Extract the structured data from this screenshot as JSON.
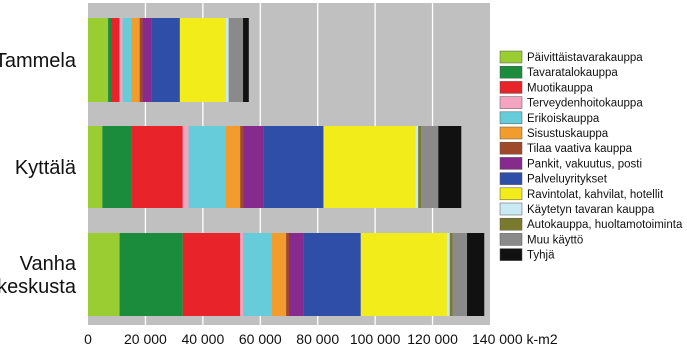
{
  "chart_data": {
    "type": "bar",
    "orientation": "horizontal",
    "stacked": true,
    "categories": [
      "Tammela",
      "Kyttälä",
      "Vanha\nkeskusta"
    ],
    "xlim": [
      0,
      140000
    ],
    "xticks": [
      "0",
      "20 000",
      "40 000",
      "60 000",
      "80 000",
      "100 000",
      "120 000",
      "140 000 k-m2"
    ],
    "grid": true,
    "legend_position": "right",
    "plot_background": "#c0c0c0",
    "series": [
      {
        "name": "Päivittäistavarakauppa",
        "color": "#9acd32",
        "values": [
          7000,
          5000,
          11000
        ]
      },
      {
        "name": "Tavaratalokauppa",
        "color": "#1a8c3c",
        "values": [
          1000,
          10000,
          22000
        ]
      },
      {
        "name": "Muotikauppa",
        "color": "#e8242a",
        "values": [
          3000,
          18000,
          20000
        ]
      },
      {
        "name": "Terveydenhoitokauppa",
        "color": "#f4a3c0",
        "values": [
          1000,
          2000,
          1000
        ]
      },
      {
        "name": "Erikoiskauppa",
        "color": "#66ccd9",
        "values": [
          3000,
          13000,
          10000
        ]
      },
      {
        "name": "Sisustuskauppa",
        "color": "#f39c2e",
        "values": [
          3000,
          5000,
          5000
        ]
      },
      {
        "name": "Tilaa vaativa kauppa",
        "color": "#a0482a",
        "values": [
          1000,
          1000,
          1000
        ]
      },
      {
        "name": "Pankit, vakuutus, posti",
        "color": "#862a8e",
        "values": [
          3000,
          7000,
          5000
        ]
      },
      {
        "name": "Palveluyritykset",
        "color": "#2e4ea8",
        "values": [
          10000,
          21000,
          20000
        ]
      },
      {
        "name": "Ravintolat, kahvilat, hotellit",
        "color": "#f2ec1a",
        "values": [
          16000,
          32000,
          30000
        ]
      },
      {
        "name": "Käytetyn tavaran kauppa",
        "color": "#c9eaf2",
        "values": [
          1000,
          1000,
          1000
        ]
      },
      {
        "name": "Autokauppa, huoltamotoiminta",
        "color": "#7a7a2e",
        "values": [
          0,
          1000,
          1000
        ]
      },
      {
        "name": "Muu käyttö",
        "color": "#8a8a8a",
        "values": [
          5000,
          6000,
          5000
        ]
      },
      {
        "name": "Tyhjä",
        "color": "#111111",
        "values": [
          2000,
          8000,
          6000
        ]
      }
    ]
  }
}
